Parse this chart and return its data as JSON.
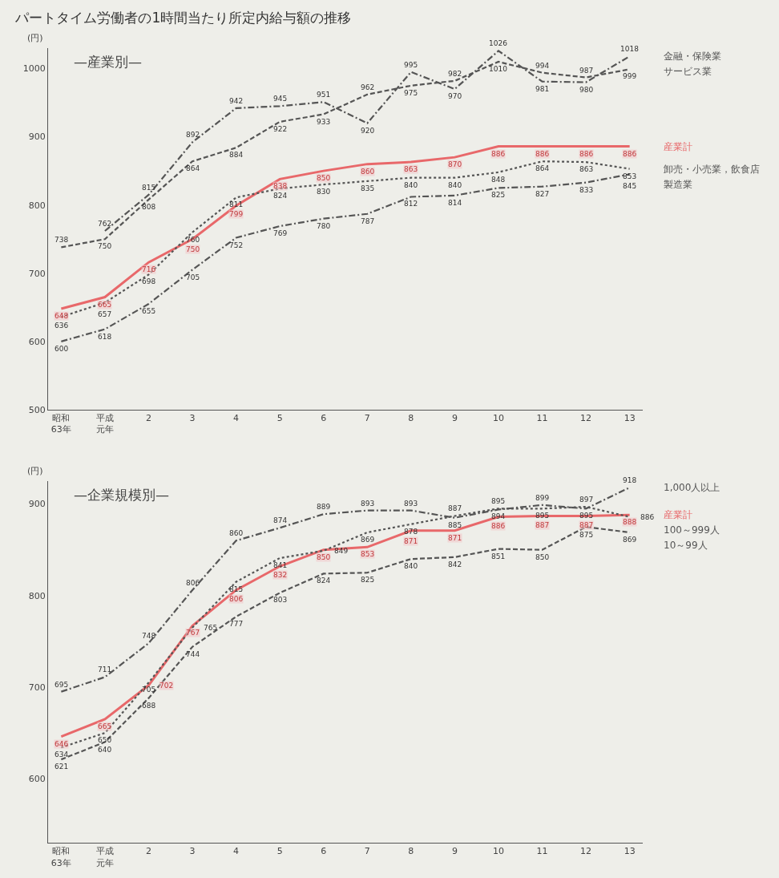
{
  "chart_data": [
    {
      "type": "line",
      "title": "パートタイム労働者の1時間当たり所定内給与額の推移",
      "subtitle": "—産業別—",
      "ylabel": "(円)",
      "categories": [
        "昭和63年",
        "平成元年",
        "2",
        "3",
        "4",
        "5",
        "6",
        "7",
        "8",
        "9",
        "10",
        "11",
        "12",
        "13"
      ],
      "ylim": [
        500,
        1030
      ],
      "yticks": [
        500,
        600,
        700,
        800,
        900,
        1000
      ],
      "grid": false,
      "legend": false,
      "data_labels": true,
      "marker": "none",
      "series": [
        {
          "name": "金融・保険業",
          "color": "#555555",
          "line_style": "dashdot",
          "values": [
            null,
            762,
            815,
            892,
            942,
            945,
            951,
            920,
            995,
            970,
            1026,
            981,
            980,
            1018
          ]
        },
        {
          "name": "サービス業",
          "color": "#555555",
          "line_style": "dashed",
          "values": [
            738,
            750,
            808,
            864,
            884,
            922,
            933,
            962,
            975,
            982,
            1010,
            994,
            987,
            999
          ]
        },
        {
          "name": "産業計",
          "color": "#e8686a",
          "line_style": "solid",
          "values": [
            648,
            665,
            716,
            750,
            799,
            838,
            850,
            860,
            863,
            870,
            886,
            886,
            886,
            886
          ]
        },
        {
          "name": "卸売・小売業，飲食店",
          "color": "#555555",
          "line_style": "dotted",
          "values": [
            636,
            657,
            698,
            760,
            811,
            824,
            830,
            835,
            840,
            840,
            848,
            864,
            863,
            853
          ]
        },
        {
          "name": "製造業",
          "color": "#555555",
          "line_style": "dashdot",
          "values": [
            600,
            618,
            655,
            705,
            752,
            769,
            780,
            787,
            812,
            814,
            825,
            827,
            833,
            845
          ]
        }
      ]
    },
    {
      "type": "line",
      "subtitle": "—企業規模別—",
      "ylabel": "(円)",
      "categories": [
        "昭和63年",
        "平成元年",
        "2",
        "3",
        "4",
        "5",
        "6",
        "7",
        "8",
        "9",
        "10",
        "11",
        "12",
        "13"
      ],
      "ylim": [
        530,
        925
      ],
      "yticks": [
        600,
        700,
        800,
        900
      ],
      "grid": false,
      "legend": false,
      "data_labels": true,
      "marker": "none",
      "series": [
        {
          "name": "1,000人以上",
          "color": "#555555",
          "line_style": "dashdot",
          "values": [
            695,
            711,
            748,
            806,
            860,
            874,
            889,
            893,
            893,
            885,
            894,
            899,
            895,
            918
          ]
        },
        {
          "name": "産業計",
          "color": "#e8686a",
          "line_style": "solid",
          "values": [
            646,
            665,
            702,
            767,
            806,
            832,
            850,
            853,
            871,
            871,
            886,
            887,
            887,
            888
          ]
        },
        {
          "name": "100～999人",
          "color": "#555555",
          "line_style": "dotted",
          "values": [
            634,
            650,
            705,
            765,
            815,
            841,
            849,
            869,
            878,
            887,
            895,
            895,
            897,
            886
          ]
        },
        {
          "name": "10～99人",
          "color": "#555555",
          "line_style": "dashed",
          "values": [
            621,
            640,
            688,
            744,
            777,
            803,
            824,
            825,
            840,
            842,
            851,
            850,
            875,
            869
          ]
        }
      ]
    }
  ]
}
